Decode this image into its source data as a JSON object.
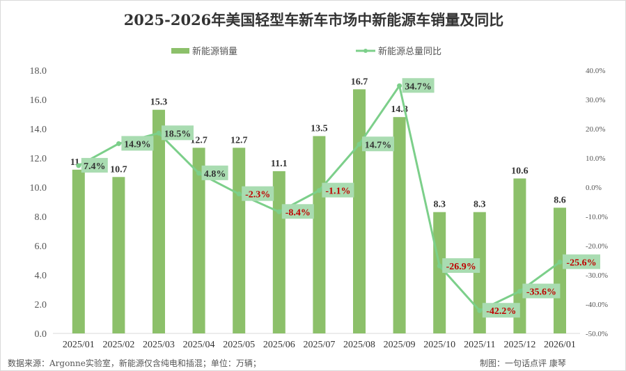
{
  "chart_data": {
    "type": "bar+line",
    "title": "2025-2026年美国轻型车新车市场中新能源车销量及同比",
    "categories": [
      "2025/01",
      "2025/02",
      "2025/03",
      "2025/04",
      "2025/05",
      "2025/06",
      "2025/07",
      "2025/08",
      "2025/09",
      "2025/10",
      "2025/11",
      "2025/12",
      "2026/01"
    ],
    "series": [
      {
        "name": "新能源销量",
        "type": "bar",
        "axis": "left",
        "color": "#8cc06a",
        "values": [
          11.2,
          10.7,
          15.3,
          12.7,
          12.7,
          11.1,
          13.5,
          16.7,
          14.8,
          8.3,
          8.3,
          10.6,
          8.6
        ]
      },
      {
        "name": "新能源总量同比",
        "type": "line",
        "axis": "right",
        "color": "#7ccf8a",
        "values": [
          7.4,
          14.9,
          18.5,
          4.8,
          -2.3,
          -8.4,
          -1.1,
          14.7,
          34.7,
          -26.9,
          -42.2,
          -35.6,
          -25.6
        ]
      }
    ],
    "left_axis": {
      "ylim": [
        0,
        18
      ],
      "ticks": [
        "0.0",
        "2.0",
        "4.0",
        "6.0",
        "8.0",
        "10.0",
        "12.0",
        "14.0",
        "16.0",
        "18.0"
      ]
    },
    "right_axis": {
      "ylim": [
        -50,
        40
      ],
      "ticks": [
        "-50.0%",
        "-40.0%",
        "-30.0%",
        "-20.0%",
        "-10.0%",
        "0.0%",
        "10.0%",
        "20.0%",
        "30.0%",
        "40.0%"
      ]
    },
    "legend": "top",
    "grid": false,
    "colors": {
      "positive_label": "#333333",
      "negative_label": "#c00000",
      "label_bg": "#a9dcb1"
    }
  },
  "footer": {
    "source": "数据来源：Argonne实验室，新能源仅含纯电和插混；单位：万辆；",
    "credit": "制图：一句话点评  康琴"
  }
}
